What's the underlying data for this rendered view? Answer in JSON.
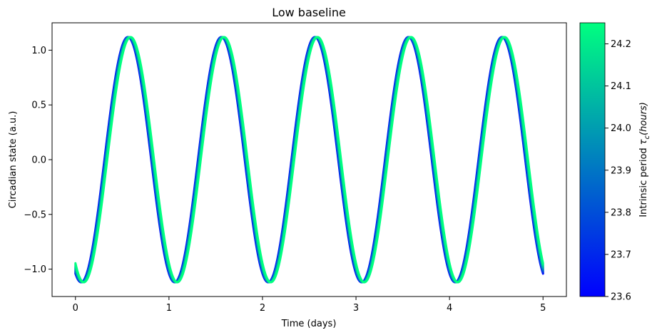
{
  "chart_data": {
    "type": "line",
    "title": "Low baseline",
    "xlabel": "Time (days)",
    "ylabel": "Circadian state (a.u.)",
    "xlim": [
      -0.25,
      5.25
    ],
    "ylim": [
      -1.25,
      1.25
    ],
    "x_ticks": [
      0,
      1,
      2,
      3,
      4,
      5
    ],
    "x_tick_labels": [
      "0",
      "1",
      "2",
      "3",
      "4",
      "5"
    ],
    "y_ticks": [
      -1.0,
      -0.5,
      0.0,
      0.5,
      1.0
    ],
    "y_tick_labels": [
      "−1.0",
      "−0.5",
      "0.0",
      "0.5",
      "1.0"
    ],
    "grid": false,
    "x_range": [
      0,
      5
    ],
    "curve": {
      "amplitude": 1.12,
      "cycles_per_day": 1.0,
      "first_peak_day_at_min_period": 0.56,
      "first_peak_day_at_max_period": 0.59
    },
    "series_periods_hours": [
      23.6,
      23.65,
      23.7,
      23.75,
      23.8,
      23.85,
      23.9,
      23.95,
      24.0,
      24.05,
      24.1,
      24.15,
      24.2,
      24.25
    ],
    "colorbar": {
      "label_prefix": "Intrinsic period ",
      "label_symbol": "τ",
      "label_subscript": "c",
      "label_suffix": "(hours)",
      "range": [
        23.6,
        24.25
      ],
      "ticks": [
        23.6,
        23.7,
        23.8,
        23.9,
        24.0,
        24.1,
        24.2
      ],
      "tick_labels": [
        "23.6",
        "23.7",
        "23.8",
        "23.9",
        "24.0",
        "24.1",
        "24.2"
      ],
      "colormap": "winter",
      "color_low": "#0000ff",
      "color_high": "#00ff80"
    }
  }
}
